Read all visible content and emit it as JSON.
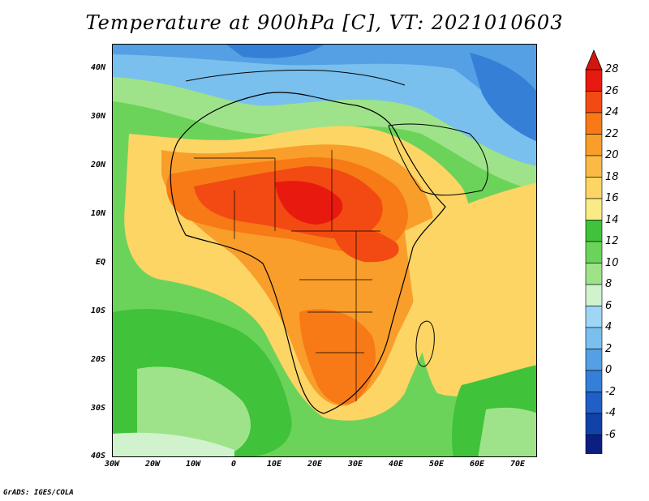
{
  "title": "Temperature at 900hPa [C], VT: 2021010603",
  "footer": "GrADS: IGES/COLA",
  "lat_labels": [
    "40N",
    "30N",
    "20N",
    "10N",
    "EQ",
    "10S",
    "20S",
    "30S",
    "40S"
  ],
  "lon_labels": [
    "30W",
    "20W",
    "10W",
    "0",
    "10E",
    "20E",
    "30E",
    "40E",
    "50E",
    "60E",
    "70E"
  ],
  "colorbar": {
    "labels": [
      "28",
      "26",
      "24",
      "22",
      "20",
      "18",
      "16",
      "14",
      "12",
      "10",
      "8",
      "6",
      "4",
      "2",
      "0",
      "-2",
      "-4",
      "-6"
    ],
    "colors": [
      "#e8190f",
      "#f24a12",
      "#f77a16",
      "#f99e2a",
      "#fbba45",
      "#fcd565",
      "#fbeb86",
      "#40c23a",
      "#6cd35a",
      "#9ee38a",
      "#d0f3ce",
      "#9ed6f6",
      "#79c0ef",
      "#559fe4",
      "#357fd6",
      "#1f5fc6",
      "#1142aa",
      "#0b1f82"
    ],
    "top_color": "#d0160d",
    "bottom_color": "#c8c8ee"
  },
  "map": {
    "lon_range": [
      -30,
      75
    ],
    "lat_range": [
      -40,
      45
    ],
    "palette": {
      "t28": "#e8190f",
      "t26": "#f24a12",
      "t24": "#f77a16",
      "t22": "#f99e2a",
      "t20": "#fbba45",
      "t18": "#fcd565",
      "t16": "#fbeb86",
      "t14": "#40c23a",
      "t12": "#6cd35a",
      "t10": "#9ee38a",
      "t8": "#d0f3ce",
      "t6": "#9ed6f6",
      "t4": "#79c0ef",
      "t2": "#559fe4",
      "t0": "#357fd6"
    }
  }
}
